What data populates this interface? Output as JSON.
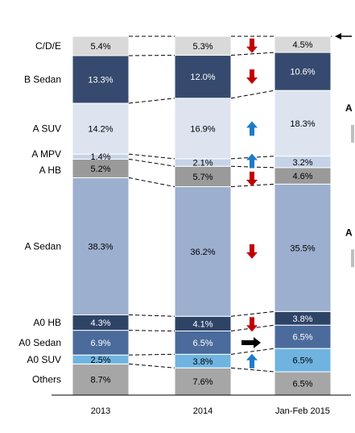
{
  "chart_data": {
    "type": "bar",
    "stacked": true,
    "normalized": true,
    "value_unit": "%",
    "categories": [
      "2013",
      "2014",
      "Jan-Feb 2015"
    ],
    "series": [
      {
        "name": "Others",
        "values": [
          8.7,
          7.6,
          6.5
        ],
        "labels": [
          "8.7%",
          "7.6%",
          "6.5%"
        ],
        "color": "#A6A6A6",
        "text_color": "#000000"
      },
      {
        "name": "A0 SUV",
        "values": [
          2.5,
          3.8,
          6.5
        ],
        "labels": [
          "2.5%",
          "3.8%",
          "6.5%"
        ],
        "color": "#6FB4E0",
        "text_color": "#000000"
      },
      {
        "name": "A0 Sedan",
        "values": [
          6.9,
          6.5,
          6.5
        ],
        "labels": [
          "6.9%",
          "6.5%",
          "6.5%"
        ],
        "color": "#4A6B9B",
        "text_color": "#ffffff"
      },
      {
        "name": "A0 HB",
        "values": [
          4.3,
          4.1,
          3.8
        ],
        "labels": [
          "4.3%",
          "4.1%",
          "3.8%"
        ],
        "color": "#2E4467",
        "text_color": "#ffffff"
      },
      {
        "name": "A Sedan",
        "values": [
          38.3,
          36.2,
          35.5
        ],
        "labels": [
          "38.3%",
          "36.2%",
          "35.5%"
        ],
        "color": "#9CAFCF",
        "text_color": "#000000"
      },
      {
        "name": "A HB",
        "values": [
          5.2,
          5.7,
          4.6
        ],
        "labels": [
          "5.2%",
          "5.7%",
          "4.6%"
        ],
        "color": "#9A9A9A",
        "text_color": "#000000"
      },
      {
        "name": "A MPV",
        "values": [
          1.4,
          2.1,
          3.2
        ],
        "labels": [
          "1.4%",
          "2.1%",
          "3.2%"
        ],
        "color": "#C5D3E8",
        "text_color": "#000000"
      },
      {
        "name": "A SUV",
        "values": [
          14.2,
          16.9,
          18.3
        ],
        "labels": [
          "14.2%",
          "16.9%",
          "18.3%"
        ],
        "color": "#DDE4F0",
        "text_color": "#000000"
      },
      {
        "name": "B Sedan",
        "values": [
          13.3,
          12.0,
          10.6
        ],
        "labels": [
          "13.3%",
          "12.0%",
          "10.6%"
        ],
        "color": "#354A6E",
        "text_color": "#ffffff"
      },
      {
        "name": "C/D/E",
        "values": [
          5.4,
          5.3,
          4.5
        ],
        "labels": [
          "5.4%",
          "5.3%",
          "4.5%"
        ],
        "color": "#D9D9D9",
        "text_color": "#000000"
      }
    ],
    "trend_arrows": [
      {
        "series": "C/D/E",
        "direction": "down",
        "color": "#C00000"
      },
      {
        "series": "B Sedan",
        "direction": "down",
        "color": "#C00000"
      },
      {
        "series": "A SUV",
        "direction": "up",
        "color": "#1F7BC8"
      },
      {
        "series": "A MPV",
        "direction": "up",
        "color": "#1F7BC8"
      },
      {
        "series": "A HB",
        "direction": "down",
        "color": "#C00000"
      },
      {
        "series": "A Sedan",
        "direction": "down",
        "color": "#C00000"
      },
      {
        "series": "A0 HB",
        "direction": "down",
        "color": "#C00000"
      },
      {
        "series": "A0 Sedan",
        "direction": "right",
        "color": "#000000"
      },
      {
        "series": "A0 SUV",
        "direction": "up",
        "color": "#1F7BC8"
      }
    ],
    "right_edge_marks": [
      {
        "text": "A",
        "near_series": "A SUV"
      },
      {
        "text": "A",
        "near_series": "A Sedan"
      }
    ],
    "pointer": {
      "direction": "left",
      "near_series": "C/D/E"
    },
    "legend": "none",
    "grid": false,
    "connectors": "dashed"
  }
}
